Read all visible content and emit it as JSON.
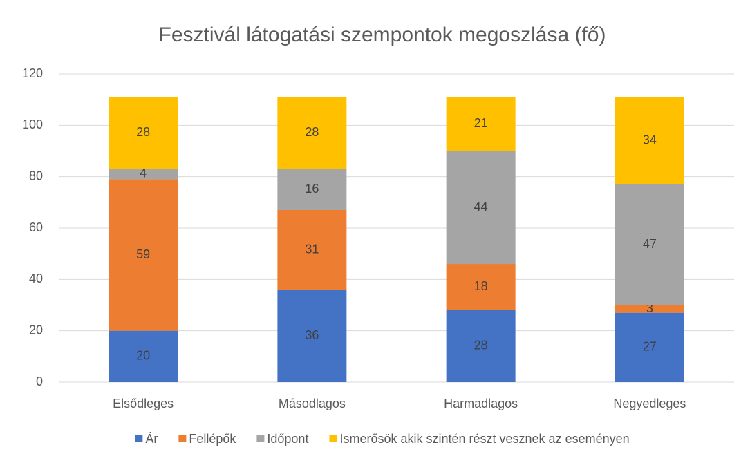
{
  "chart_data": {
    "type": "stacked-bar",
    "title": "Fesztivál látogatási szempontok megoszlása (fő)",
    "categories": [
      "Elsődleges",
      "Másodlagos",
      "Harmadlagos",
      "Negyedleges"
    ],
    "series": [
      {
        "name": "Ár",
        "color": "#4472c4",
        "values": [
          20,
          36,
          28,
          27
        ]
      },
      {
        "name": "Fellépők",
        "color": "#ed7d31",
        "values": [
          59,
          31,
          18,
          3
        ]
      },
      {
        "name": "Időpont",
        "color": "#a5a5a5",
        "values": [
          4,
          16,
          44,
          47
        ]
      },
      {
        "name": "Ismerősök akik szintén részt vesznek az eseményen",
        "color": "#ffc000",
        "values": [
          28,
          28,
          21,
          34
        ]
      }
    ],
    "ylim": [
      0,
      120
    ],
    "yticks": [
      0,
      20,
      40,
      60,
      80,
      100,
      120
    ],
    "grid": true,
    "legend": "bottom"
  }
}
